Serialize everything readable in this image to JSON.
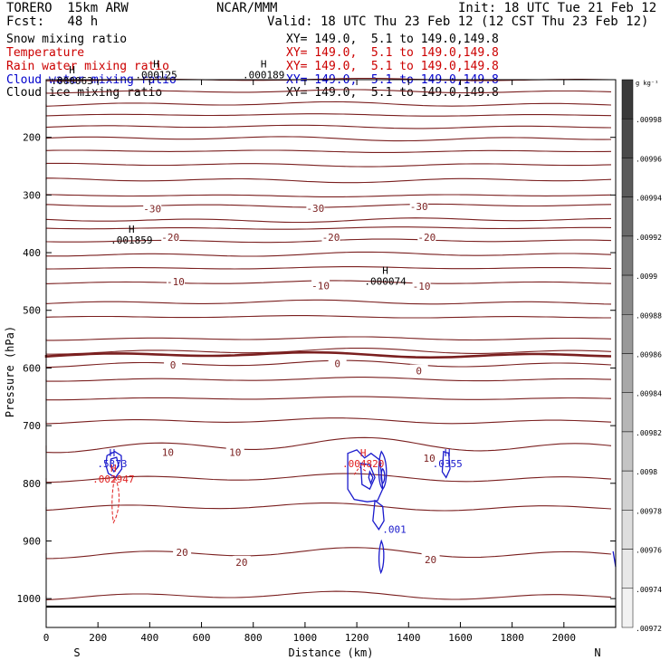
{
  "header": {
    "model": "TORERO  15km ARW",
    "center": "NCAR/MMM",
    "init": "Init: 18 UTC Tue 21 Feb 12",
    "fcst": "Fcst:   48 h",
    "valid": "Valid: 18 UTC Thu 23 Feb 12 (12 CST Thu 23 Feb 12)"
  },
  "fields": [
    {
      "name": "Snow mixing ratio",
      "xy": "XY= 149.0,  5.1 to 149.0,149.8",
      "color": "#000000"
    },
    {
      "name": "Temperature",
      "xy": "XY= 149.0,  5.1 to 149.0,149.8",
      "color": "#cc0000"
    },
    {
      "name": "Rain water mixing ratio",
      "xy": "XY= 149.0,  5.1 to 149.0,149.8",
      "color": "#cc0000"
    },
    {
      "name": "Cloud water mixing ratio",
      "xy": "XY= 149.0,  5.1 to 149.0,149.8",
      "color": "#0000cc"
    },
    {
      "name": "Cloud ice mixing ratio",
      "xy": "XY= 149.0,  5.1 to 149.0,149.8",
      "color": "#000000"
    }
  ],
  "colors": {
    "temperature": "#7a1f1f",
    "rain": "#e02020",
    "cloud_water": "#1a1acc",
    "axis": "#000000"
  },
  "colorbar": {
    "unit": "g kg⁻¹",
    "labels": [
      ".00998",
      ".00996",
      ".00994",
      ".00992",
      ".0099",
      ".00988",
      ".00986",
      ".00984",
      ".00982",
      ".0098",
      ".00978",
      ".00976",
      ".00974",
      ".00972"
    ],
    "shades": [
      "#3a3a3a",
      "#4a4a4a",
      "#5a5a5a",
      "#6a6a6a",
      "#7a7a7a",
      "#8a8a8a",
      "#999999",
      "#a8a8a8",
      "#b6b6b6",
      "#c4c4c4",
      "#d2d2d2",
      "#dedede",
      "#e8e8e8",
      "#f2f2f2"
    ]
  },
  "chart_data": {
    "type": "contour",
    "xlabel": "Distance (km)",
    "ylabel": "Pressure (hPa)",
    "xlim": [
      0,
      2200
    ],
    "ylim": [
      1050,
      100
    ],
    "x_ticks": [
      0,
      200,
      400,
      600,
      800,
      1000,
      1200,
      1400,
      1600,
      1800,
      2000
    ],
    "y_ticks": [
      200,
      300,
      400,
      500,
      600,
      700,
      800,
      900,
      1000
    ],
    "x_end_labels": {
      "left": "S",
      "right": "N"
    },
    "temperature_labels": [
      {
        "text": "-30",
        "x": 410,
        "p": 324
      },
      {
        "text": "-30",
        "x": 1040,
        "p": 323
      },
      {
        "text": "-30",
        "x": 1440,
        "p": 320
      },
      {
        "text": "-20",
        "x": 480,
        "p": 373
      },
      {
        "text": "-20",
        "x": 1100,
        "p": 373
      },
      {
        "text": "-20",
        "x": 1470,
        "p": 373
      },
      {
        "text": "-10",
        "x": 500,
        "p": 450
      },
      {
        "text": "-10",
        "x": 1060,
        "p": 457
      },
      {
        "text": "-10",
        "x": 1450,
        "p": 458
      },
      {
        "text": "0",
        "x": 490,
        "p": 595
      },
      {
        "text": "0",
        "x": 1125,
        "p": 592
      },
      {
        "text": "0",
        "x": 1440,
        "p": 605
      },
      {
        "text": "10",
        "x": 470,
        "p": 746
      },
      {
        "text": "10",
        "x": 730,
        "p": 746
      },
      {
        "text": "10",
        "x": 1480,
        "p": 756
      },
      {
        "text": "20",
        "x": 525,
        "p": 920
      },
      {
        "text": "20",
        "x": 755,
        "p": 937
      },
      {
        "text": "20",
        "x": 1485,
        "p": 932
      }
    ],
    "extrema": [
      {
        "mark": "H",
        "value": ".000125",
        "x": 425,
        "p": 98,
        "field": "snow"
      },
      {
        "mark": "H",
        "value": ".000189",
        "x": 840,
        "p": 98,
        "field": "snow"
      },
      {
        "mark": "H",
        "value": ".000063",
        "x": 100,
        "p": 108,
        "field": "cloud ice"
      },
      {
        "mark": "H",
        "value": ".001859",
        "x": 330,
        "p": 384,
        "field": "snow"
      },
      {
        "mark": "H",
        "value": ".000074",
        "x": 1310,
        "p": 456,
        "field": "cloud ice"
      },
      {
        "mark": "H",
        "value": ".5373",
        "x": 255,
        "p": 772,
        "field": "cloud water"
      },
      {
        "mark": "H",
        "value": ".002947",
        "x": 260,
        "p": 799,
        "field": "rain"
      },
      {
        "mark": "H",
        "value": ".004820",
        "x": 1225,
        "p": 772,
        "field": "rain"
      },
      {
        "mark": "H",
        "value": ".0355",
        "x": 1550,
        "p": 772,
        "field": "cloud water"
      }
    ],
    "cloud_water_contour_labels": [
      {
        "text": ".001",
        "x": 1345,
        "p": 886
      }
    ],
    "temperature_contour_values": [
      -30,
      -20,
      -10,
      0,
      10,
      20
    ]
  }
}
